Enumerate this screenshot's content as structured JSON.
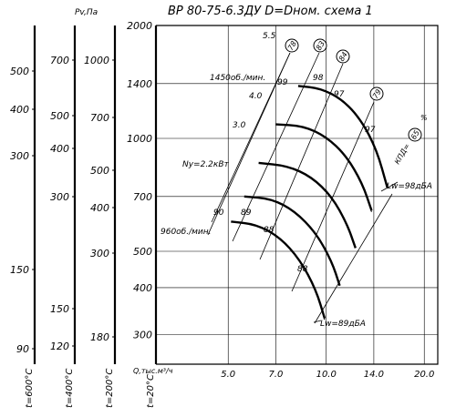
{
  "chart_data": {
    "type": "line",
    "title": "ВР 80-75-6.3ДУ D=Dном. схема 1",
    "xlabel": "Q,тыс.м³/ч",
    "ylabel": "Pv,Па",
    "x_ticks": [
      "5.0",
      "7.0",
      "10.0",
      "14.0",
      "20.0"
    ],
    "y_ticks": [
      "300",
      "400",
      "500",
      "700",
      "1000",
      "1400",
      "2000"
    ],
    "x_range": [
      3.0,
      22.0
    ],
    "y_range": [
      250,
      2000
    ],
    "scale": "log-log",
    "grid": true,
    "density_scales": [
      {
        "label": "t=600°C",
        "ticks": [
          "500",
          "400",
          "300",
          "150",
          "90"
        ]
      },
      {
        "label": "t=400°C",
        "ticks": [
          "700",
          "500",
          "400",
          "300",
          "150",
          "120"
        ]
      },
      {
        "label": "t=200°C",
        "ticks": [
          "1000",
          "700",
          "500",
          "400",
          "300",
          "180"
        ]
      },
      {
        "label": "t=20°C",
        "ticks": []
      }
    ],
    "speed_curves": [
      {
        "name": "1450об./мин.",
        "points": [
          [
            8.2,
            1380
          ],
          [
            9.6,
            1360
          ],
          [
            11.2,
            1270
          ],
          [
            12.8,
            1120
          ],
          [
            14.3,
            930
          ],
          [
            15.4,
            740
          ]
        ]
      },
      {
        "name": "",
        "points": [
          [
            7.0,
            1090
          ],
          [
            8.5,
            1080
          ],
          [
            10.0,
            1010
          ],
          [
            11.5,
            900
          ],
          [
            12.9,
            760
          ],
          [
            13.8,
            640
          ]
        ]
      },
      {
        "name": "",
        "points": [
          [
            6.2,
            860
          ],
          [
            7.6,
            845
          ],
          [
            9.0,
            790
          ],
          [
            10.4,
            700
          ],
          [
            11.6,
            590
          ],
          [
            12.3,
            510
          ]
        ]
      },
      {
        "name": "",
        "points": [
          [
            5.6,
            700
          ],
          [
            6.8,
            690
          ],
          [
            8.0,
            640
          ],
          [
            9.3,
            560
          ],
          [
            10.4,
            470
          ],
          [
            11.0,
            405
          ]
        ]
      },
      {
        "name": "960об./мин.",
        "points": [
          [
            5.1,
            600
          ],
          [
            6.1,
            590
          ],
          [
            7.2,
            545
          ],
          [
            8.3,
            475
          ],
          [
            9.3,
            395
          ],
          [
            9.9,
            330
          ]
        ]
      }
    ],
    "annotations": {
      "power": [
        "5.5",
        "4.0",
        "3.0",
        "Ny=2.2кВт"
      ],
      "efficiency": [
        "90",
        "89",
        "88",
        "88",
        "99",
        "98",
        "97",
        "97"
      ],
      "efficiency_circled": [
        "78",
        "83",
        "84",
        "79",
        "65"
      ],
      "efficiency_axis": "КПД=",
      "noise": [
        "Lw=98дБА",
        "Lw=89дБА"
      ]
    }
  }
}
